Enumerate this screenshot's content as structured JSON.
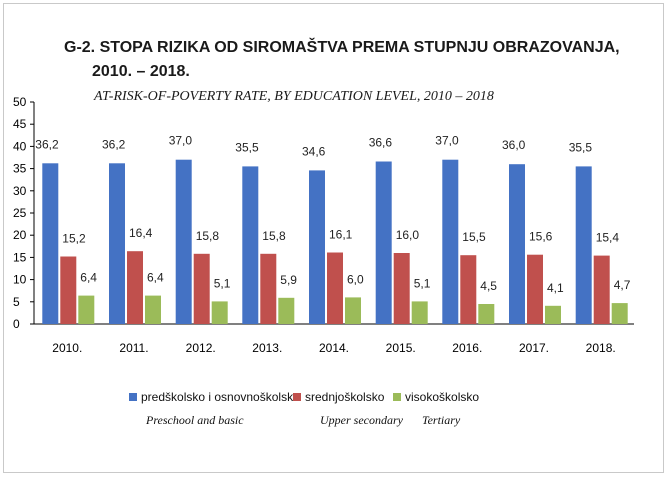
{
  "chart_data": {
    "type": "bar",
    "title_line1": "G-2. STOPA RIZIKA OD SIROMAŠTVA PREMA STUPNJU OBRAZOVANJA,",
    "title_line2": "2010. – 2018.",
    "subtitle": "AT-RISK-OF-POVERTY RATE, BY EDUCATION LEVEL,  2010 – 2018",
    "categories": [
      "2010.",
      "2011.",
      "2012.",
      "2013.",
      "2014.",
      "2015.",
      "2016.",
      "2017.",
      "2018."
    ],
    "series": [
      {
        "name": "predškolsko i osnovnoškolsko",
        "name_en": "Preschool and basic",
        "color": "#4472c4",
        "values": [
          36.2,
          36.2,
          37.0,
          35.5,
          34.6,
          36.6,
          37.0,
          36.0,
          35.5
        ],
        "labels": [
          "36,2",
          "36,2",
          "37,0",
          "35,5",
          "34,6",
          "36,6",
          "37,0",
          "36,0",
          "35,5"
        ]
      },
      {
        "name": "srednjoškolsko",
        "name_en": "Upper secondary",
        "color": "#c0504d",
        "values": [
          15.2,
          16.4,
          15.8,
          15.8,
          16.1,
          16.0,
          15.5,
          15.6,
          15.4
        ],
        "labels": [
          "15,2",
          "16,4",
          "15,8",
          "15,8",
          "16,1",
          "16,0",
          "15,5",
          "15,6",
          "15,4"
        ]
      },
      {
        "name": "visokoškolsko",
        "name_en": "Tertiary",
        "color": "#9bbb59",
        "values": [
          6.4,
          6.4,
          5.1,
          5.9,
          6.0,
          5.1,
          4.5,
          4.1,
          4.7
        ],
        "labels": [
          "6,4",
          "6,4",
          "5,1",
          "5,9",
          "6,0",
          "5,1",
          "4,5",
          "4,1",
          "4,7"
        ]
      }
    ],
    "ylim": [
      0,
      50
    ],
    "yticks": [
      0,
      5,
      10,
      15,
      20,
      25,
      30,
      35,
      40,
      45,
      50
    ],
    "grid": false,
    "legend_position": "bottom"
  }
}
